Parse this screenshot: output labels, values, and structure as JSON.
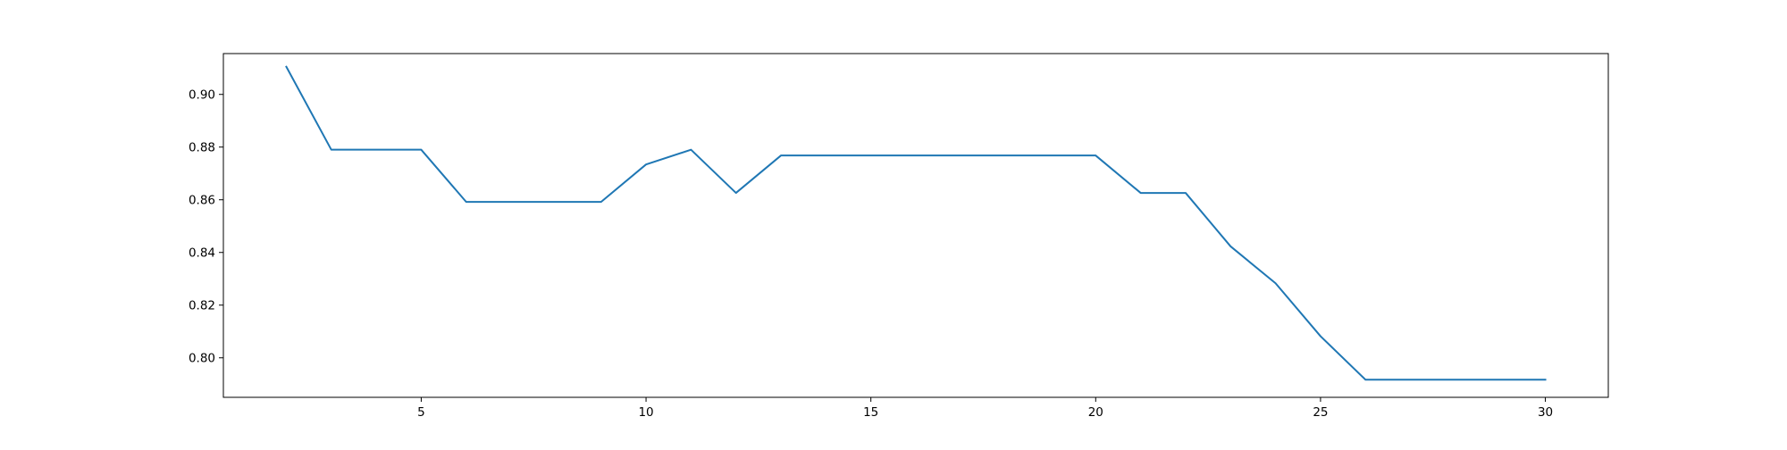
{
  "chart_data": {
    "type": "line",
    "title": "",
    "xlabel": "",
    "ylabel": "",
    "xlim": [
      0.6,
      31.4
    ],
    "ylim": [
      0.785,
      0.9155
    ],
    "grid": false,
    "x_ticks": [
      5,
      10,
      15,
      20,
      25,
      30
    ],
    "x_tick_labels": [
      "5",
      "10",
      "15",
      "20",
      "25",
      "30"
    ],
    "y_ticks": [
      0.8,
      0.82,
      0.84,
      0.86,
      0.88,
      0.9
    ],
    "y_tick_labels": [
      "0.80",
      "0.82",
      "0.84",
      "0.86",
      "0.88",
      "0.90"
    ],
    "series": [
      {
        "color": "#1f77b4",
        "x": [
          2,
          3,
          4,
          5,
          6,
          7,
          8,
          9,
          10,
          11,
          12,
          13,
          14,
          15,
          16,
          17,
          18,
          19,
          20,
          21,
          22,
          23,
          24,
          25,
          26,
          27,
          28,
          29,
          30
        ],
        "y": [
          0.9105,
          0.879,
          0.879,
          0.879,
          0.8592,
          0.8592,
          0.8592,
          0.8592,
          0.8734,
          0.879,
          0.8626,
          0.8768,
          0.8768,
          0.8768,
          0.8768,
          0.8768,
          0.8768,
          0.8768,
          0.8768,
          0.8626,
          0.8626,
          0.8423,
          0.8283,
          0.8082,
          0.7917,
          0.7917,
          0.7917,
          0.7917,
          0.7917
        ]
      }
    ]
  }
}
